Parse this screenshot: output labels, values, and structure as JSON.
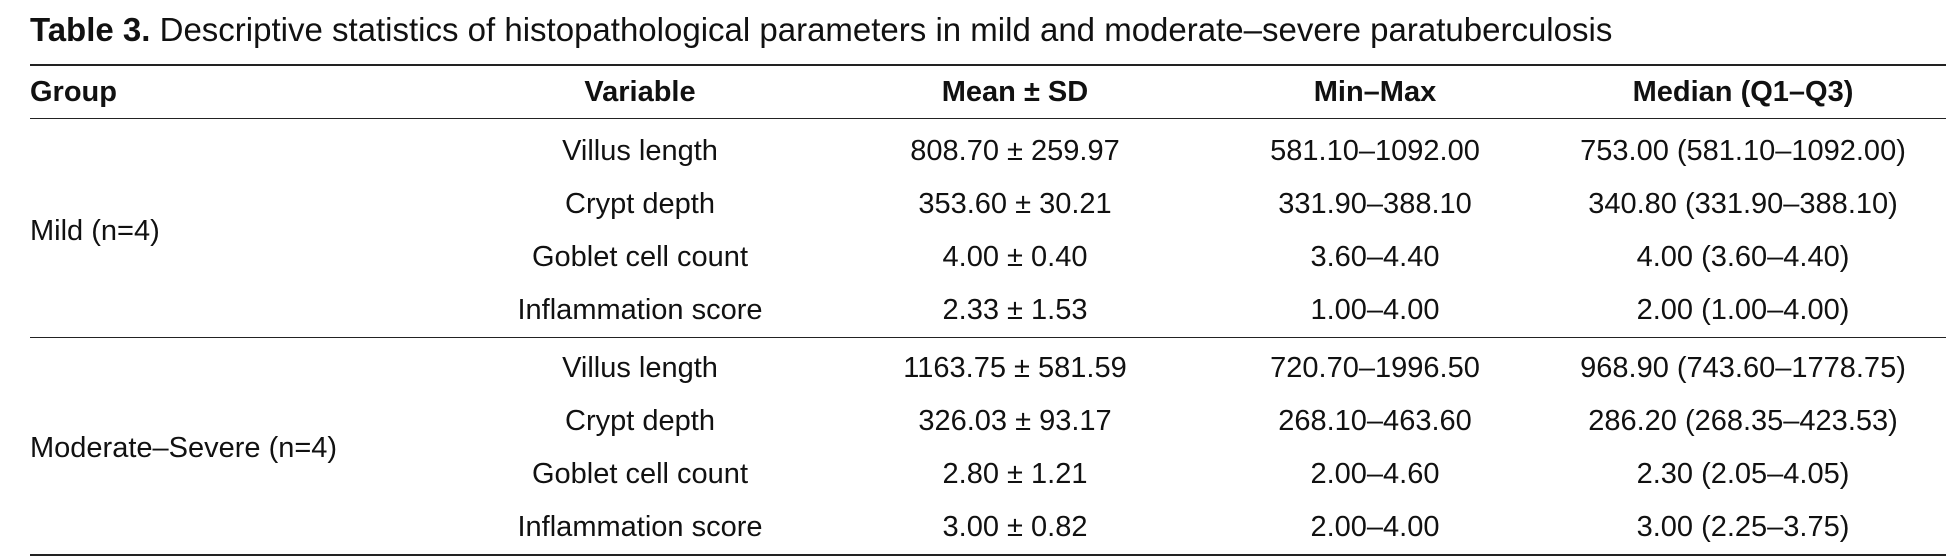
{
  "caption": {
    "label": "Table 3.",
    "text": " Descriptive statistics of histopathological parameters in mild and moderate–severe paratuberculosis"
  },
  "table": {
    "headers": [
      "Group",
      "Variable",
      "Mean ± SD",
      "Min–Max",
      "Median (Q1–Q3)"
    ],
    "groups": [
      {
        "name": "Mild (n=4)",
        "rows": [
          [
            "Villus length",
            "808.70 ± 259.97",
            "581.10–1092.00",
            "753.00 (581.10–1092.00)"
          ],
          [
            "Crypt depth",
            "353.60 ± 30.21",
            "331.90–388.10",
            "340.80 (331.90–388.10)"
          ],
          [
            "Goblet cell count",
            "4.00 ± 0.40",
            "3.60–4.40",
            "4.00 (3.60–4.40)"
          ],
          [
            "Inflammation score",
            "2.33 ± 1.53",
            "1.00–4.00",
            "2.00 (1.00–4.00)"
          ]
        ]
      },
      {
        "name": "Moderate–Severe (n=4)",
        "rows": [
          [
            "Villus length",
            "1163.75 ± 581.59",
            "720.70–1996.50",
            "968.90 (743.60–1778.75)"
          ],
          [
            "Crypt depth",
            "326.03 ± 93.17",
            "268.10–463.60",
            "286.20 (268.35–423.53)"
          ],
          [
            "Goblet cell count",
            "2.80 ± 1.21",
            "2.00–4.60",
            "2.30 (2.05–4.05)"
          ],
          [
            "Inflammation score",
            "3.00 ± 0.82",
            "2.00–4.00",
            "3.00 (2.25–3.75)"
          ]
        ]
      }
    ]
  }
}
